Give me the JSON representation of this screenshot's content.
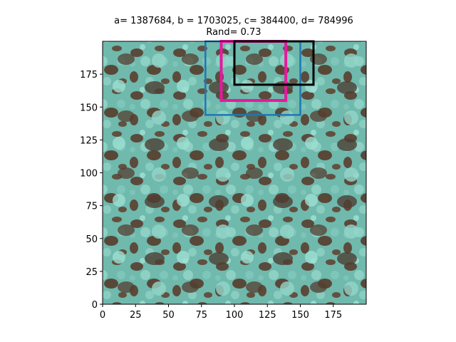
{
  "chart_data": {
    "type": "image",
    "title_line1": "a= 1387684, b = 1703025, c= 384400, d= 784996",
    "title_line2": "Rand= 0.73",
    "xlim": [
      0,
      200
    ],
    "ylim": [
      0,
      200
    ],
    "x_ticks": [
      0,
      25,
      50,
      75,
      100,
      125,
      150,
      175
    ],
    "y_ticks": [
      0,
      25,
      50,
      75,
      100,
      125,
      150,
      175
    ],
    "image_description": "aerial satellite image of forest canopy, teal tree crowns on brown ground",
    "rectangles": [
      {
        "color": "#1f77b4",
        "x0": 78,
        "x1": 150,
        "y0": 144,
        "y1": 200
      },
      {
        "color": "#e6199e",
        "x0": 90,
        "x1": 139,
        "y0": 155,
        "y1": 200
      },
      {
        "color": "#000000",
        "x0": 100,
        "x1": 160,
        "y0": 167,
        "y1": 200
      }
    ]
  }
}
